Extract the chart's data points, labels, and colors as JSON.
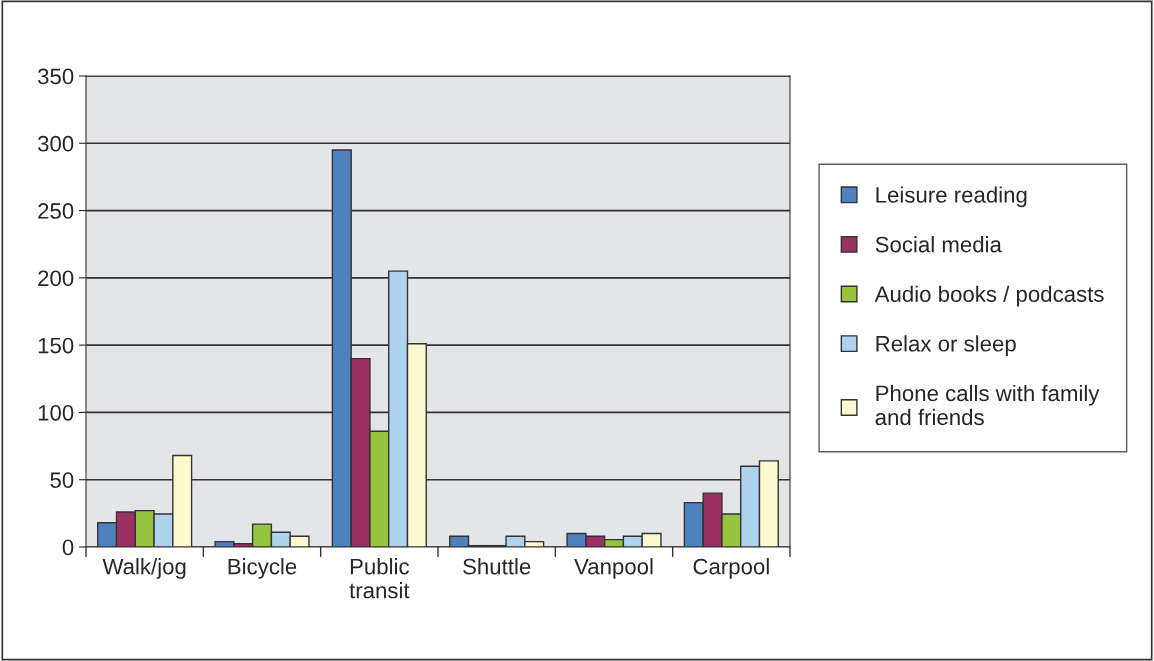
{
  "chart_data": {
    "type": "bar",
    "categories": [
      "Walk/jog",
      "Bicycle",
      "Public\ntransit",
      "Shuttle",
      "Vanpool",
      "Carpool"
    ],
    "series": [
      {
        "name": "Leisure reading",
        "color": "#4f81bd",
        "values": [
          18,
          4,
          295,
          8,
          10,
          33
        ]
      },
      {
        "name": "Social media",
        "color": "#9b3163",
        "values": [
          26,
          2.5,
          140,
          1,
          8,
          40
        ]
      },
      {
        "name": "Audio books / podcasts",
        "color": "#95c43d",
        "values": [
          27,
          17,
          86,
          1,
          5.5,
          24.5
        ]
      },
      {
        "name": "Relax or sleep",
        "color": "#aed3ef",
        "values": [
          24.5,
          11,
          205,
          8,
          8,
          60
        ]
      },
      {
        "name": "Phone calls with family\nand friends",
        "color": "#fbf9cf",
        "values": [
          68,
          8,
          151,
          4,
          10,
          64
        ]
      }
    ],
    "ylim": [
      0,
      350
    ],
    "yticks": [
      0,
      50,
      100,
      150,
      200,
      250,
      300,
      350
    ],
    "grid": "y",
    "legend": "right"
  }
}
